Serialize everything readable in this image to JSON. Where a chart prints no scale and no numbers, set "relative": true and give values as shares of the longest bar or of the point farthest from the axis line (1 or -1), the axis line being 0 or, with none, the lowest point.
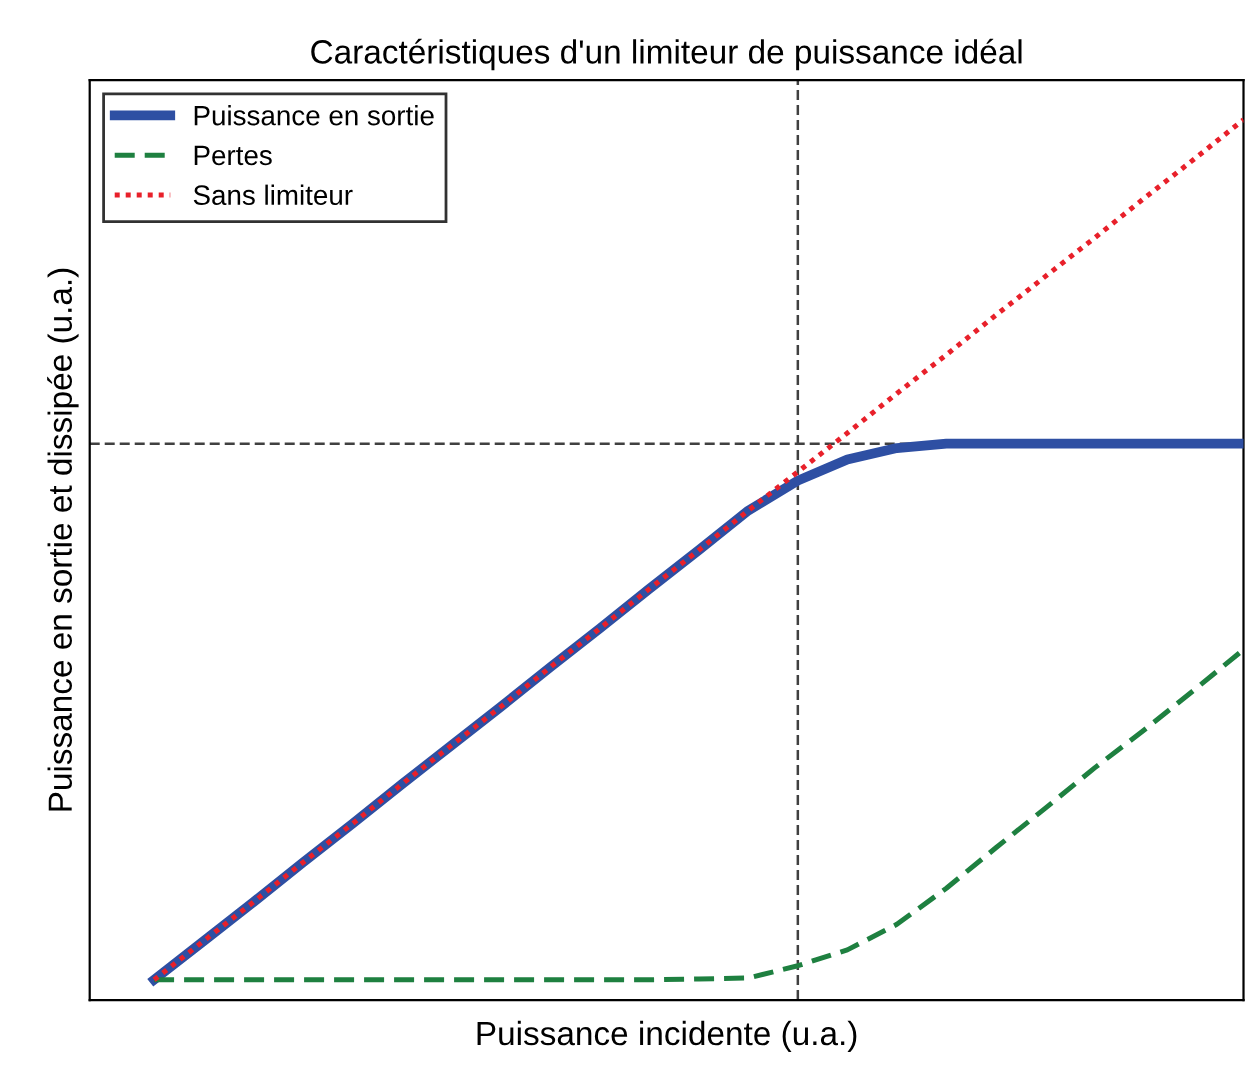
{
  "chart_data": {
    "type": "line",
    "title": "Caractéristiques d'un limiteur de puissance idéal",
    "xlabel": "Puissance incidente (u.a.)",
    "ylabel": "Puissance en sortie et dissipée (u.a.)",
    "relative": true,
    "categories": [
      null,
      null,
      null,
      null,
      null,
      null,
      null,
      null,
      null,
      null,
      null,
      null,
      null,
      null,
      null,
      null,
      null,
      null,
      null,
      null,
      null,
      null,
      null
    ],
    "series": [
      {
        "name": "Puissance en sortie",
        "color": "#2e4fa3",
        "line_style": "solid",
        "values": [
          0.023,
          0.067,
          0.111,
          0.156,
          0.2,
          0.245,
          0.289,
          0.333,
          0.378,
          0.422,
          0.467,
          0.511,
          0.556,
          0.59,
          0.614,
          0.627,
          0.632,
          0.632,
          0.632,
          0.632,
          0.632,
          0.632,
          0.632
        ]
      },
      {
        "name": "Pertes",
        "color": "#1e8040",
        "line_style": "dashed",
        "values": [
          0.023,
          0.023,
          0.023,
          0.023,
          0.023,
          0.023,
          0.023,
          0.023,
          0.023,
          0.023,
          0.023,
          0.024,
          0.025,
          0.039,
          0.057,
          0.086,
          0.127,
          0.173,
          0.218,
          0.264,
          0.307,
          0.352,
          0.398
        ]
      },
      {
        "name": "Sans limiteur",
        "color": "#e8202a",
        "line_style": "dotted",
        "values": [
          0.023,
          0.067,
          0.111,
          0.156,
          0.2,
          0.245,
          0.289,
          0.333,
          0.378,
          0.422,
          0.467,
          0.511,
          0.556,
          0.6,
          0.644,
          0.689,
          0.733,
          0.778,
          0.822,
          0.866,
          0.911,
          0.955,
          1.0
        ]
      }
    ],
    "ref_lines": [
      {
        "axis": "y",
        "value": 0.632,
        "color": "#404040",
        "line_style": "dashed"
      }
    ],
    "legend": "top left",
    "grid": false
  }
}
